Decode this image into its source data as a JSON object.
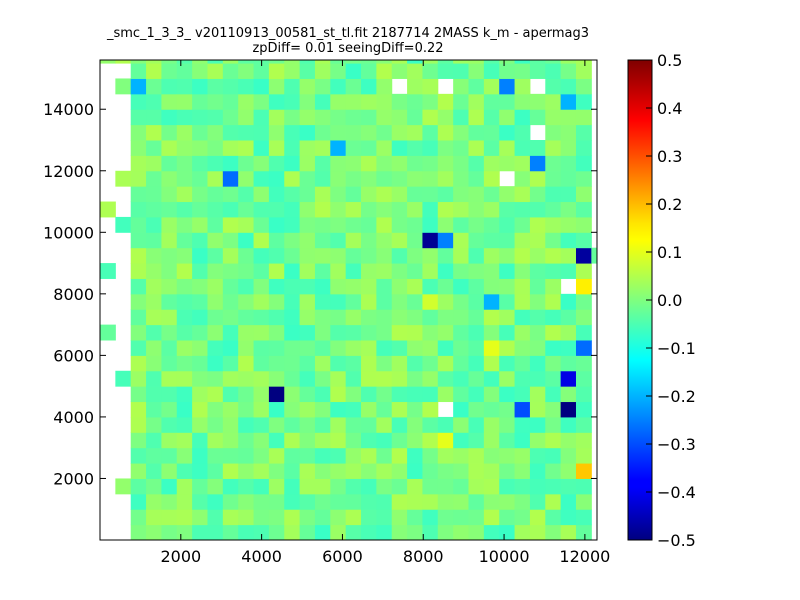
{
  "chart_data": {
    "type": "heatmap",
    "title_line1": "_smc_1_3_3_ v20110913_00581_st_tl.fit 2187714 2MASS k_m - apermag3",
    "title_line2": "zpDiff= 0.01 seeingDiff=0.22",
    "xlabel": "",
    "ylabel": "",
    "xlim": [
      0,
      12300
    ],
    "ylim": [
      0,
      15600
    ],
    "x_ticks": [
      2000,
      4000,
      6000,
      8000,
      10000,
      12000
    ],
    "y_ticks": [
      2000,
      4000,
      6000,
      8000,
      10000,
      12000,
      14000
    ],
    "colorbar": {
      "colormap": "jet",
      "vmin": -0.5,
      "vmax": 0.5,
      "ticks": [
        "0.5",
        "0.4",
        "0.3",
        "0.2",
        "0.1",
        "0.0",
        "−0.1",
        "−0.2",
        "−0.3",
        "−0.4",
        "−0.5"
      ]
    },
    "grid": false,
    "cell_size_data_units": [
      380,
      500
    ],
    "x_start": 0,
    "y_start": 0,
    "outliers": [
      {
        "x": 4500,
        "y": 4500,
        "value": -0.5
      },
      {
        "x": 11400,
        "y": 4200,
        "value": -0.5
      },
      {
        "x": 8300,
        "y": 9500,
        "value": -0.48
      },
      {
        "x": 11800,
        "y": 9100,
        "value": -0.47
      },
      {
        "x": 11400,
        "y": 5000,
        "value": -0.4
      },
      {
        "x": 10300,
        "y": 4200,
        "value": -0.3
      },
      {
        "x": 11800,
        "y": 6000,
        "value": -0.27
      },
      {
        "x": 3300,
        "y": 11800,
        "value": -0.27
      },
      {
        "x": 11000,
        "y": 12200,
        "value": -0.25
      },
      {
        "x": 9900,
        "y": 14900,
        "value": -0.25
      },
      {
        "x": 8700,
        "y": 9500,
        "value": -0.25
      },
      {
        "x": 5900,
        "y": 12600,
        "value": -0.2
      },
      {
        "x": 9500,
        "y": 7600,
        "value": -0.2
      },
      {
        "x": 1000,
        "y": 14900,
        "value": -0.2
      },
      {
        "x": 11400,
        "y": 14000,
        "value": -0.2
      },
      {
        "x": 8300,
        "y": 7600,
        "value": 0.08
      },
      {
        "x": 9500,
        "y": 6000,
        "value": 0.1
      },
      {
        "x": 8700,
        "y": 3400,
        "value": 0.1
      },
      {
        "x": 11800,
        "y": 8000,
        "value": 0.14
      },
      {
        "x": 11800,
        "y": 2200,
        "value": 0.18
      }
    ],
    "missing_cells": [
      {
        "x": 8700,
        "y": 4200
      },
      {
        "x": 9900,
        "y": 11800
      },
      {
        "x": 10700,
        "y": 13200
      },
      {
        "x": 7500,
        "y": 14900
      },
      {
        "x": 8700,
        "y": 14900
      },
      {
        "x": 10700,
        "y": 14500
      },
      {
        "x": 11400,
        "y": 8400
      }
    ]
  }
}
